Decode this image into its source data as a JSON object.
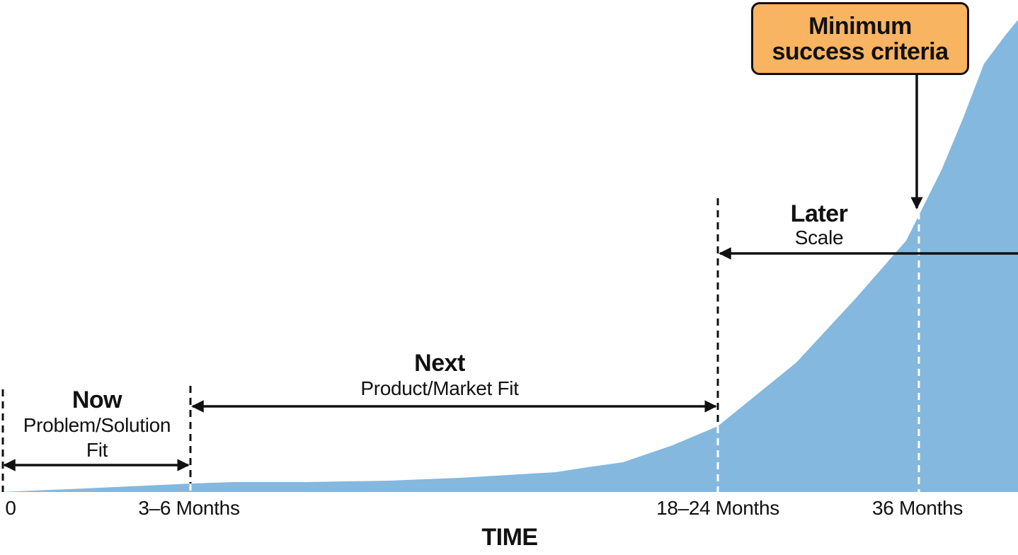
{
  "colors": {
    "area_fill": "#84b8de",
    "callout_fill": "#f9b461",
    "ink": "#111111",
    "marker_line_on_area": "#ffffff"
  },
  "stages": {
    "now": {
      "title": "Now",
      "subtitle_line1": "Problem/Solution",
      "subtitle_line2": "Fit"
    },
    "next": {
      "title": "Next",
      "subtitle": "Product/Market Fit"
    },
    "later": {
      "title": "Later",
      "subtitle": "Scale"
    }
  },
  "callout": {
    "label": "Minimum success criteria"
  },
  "x_axis": {
    "title": "TIME",
    "ticks": [
      "0",
      "3–6 Months",
      "18–24 Months",
      "36 Months"
    ]
  }
}
